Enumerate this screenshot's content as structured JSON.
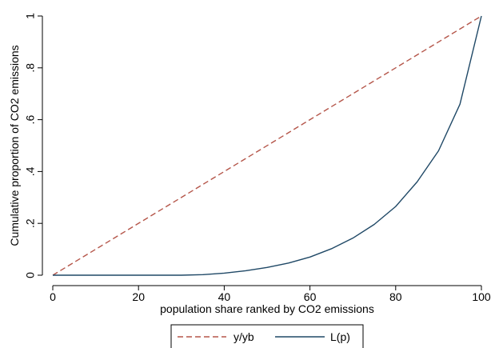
{
  "chart_data": {
    "type": "line",
    "xlabel": "population share ranked by CO2 emissions",
    "ylabel": "Cumulative proportion of CO2 emissions",
    "xlim": [
      0,
      100
    ],
    "ylim": [
      0,
      1
    ],
    "xticks": [
      0,
      20,
      40,
      60,
      80,
      100
    ],
    "xtick_labels": [
      "0",
      "20",
      "40",
      "60",
      "80",
      "100"
    ],
    "yticks": [
      0,
      0.2,
      0.4,
      0.6,
      0.8,
      1
    ],
    "ytick_labels": [
      "0",
      ".2",
      ".4",
      ".6",
      ".8",
      "1"
    ],
    "grid": false,
    "legend_position": "bottom",
    "series": [
      {
        "name": "y/yb",
        "style": "dashed",
        "color": "#b5564a",
        "x": [
          0,
          100
        ],
        "y": [
          0,
          1
        ]
      },
      {
        "name": "L(p)",
        "style": "solid",
        "color": "#1f4866",
        "x": [
          0,
          5,
          10,
          15,
          20,
          25,
          30,
          35,
          40,
          45,
          50,
          55,
          60,
          65,
          70,
          75,
          80,
          85,
          90,
          95,
          100
        ],
        "y": [
          0,
          0,
          0,
          0,
          0,
          0,
          0,
          0.002,
          0.008,
          0.017,
          0.03,
          0.047,
          0.07,
          0.102,
          0.143,
          0.196,
          0.265,
          0.36,
          0.48,
          0.66,
          1.0
        ]
      }
    ]
  }
}
